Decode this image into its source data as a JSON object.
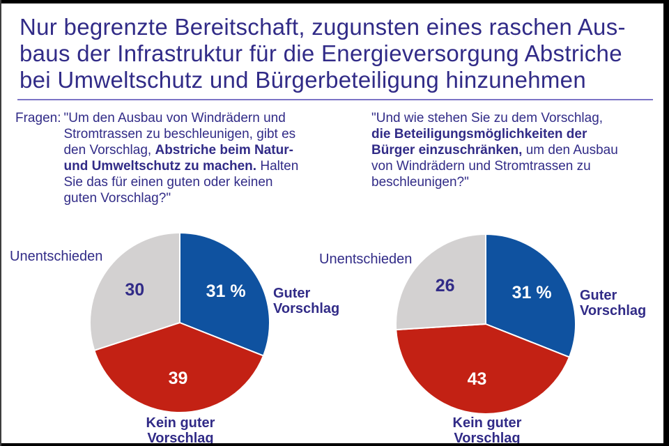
{
  "header": {
    "title": "Nur begrenzte Bereitschaft, zugunsten eines raschen Aus-\nbaus der Infrastruktur für die Energieversorgung Abstriche\nbei Umweltschutz und Bürgerbeteiligung hinzunehmen"
  },
  "questions": {
    "prefix": "Fragen:",
    "left": {
      "segments": [
        {
          "text": "\"Um den Ausbau von Windrädern und\nStromtrassen zu beschleunigen, gibt es\nden Vorschlag, ",
          "bold": false
        },
        {
          "text": "Abstriche beim Natur-\nund Umweltschutz zu machen.",
          "bold": true
        },
        {
          "text": " Halten\nSie das für einen guten oder keinen\nguten Vorschlag?\"",
          "bold": false
        }
      ]
    },
    "right": {
      "segments": [
        {
          "text": "\"Und wie stehen Sie zu dem Vorschlag,\n",
          "bold": false
        },
        {
          "text": "die Beteiligungsmöglichkeiten der\nBürger einzuschränken,",
          "bold": true
        },
        {
          "text": " um den Ausbau\nvon Windrädern und Stromtrassen zu\nbeschleunigen?\"",
          "bold": false
        }
      ]
    }
  },
  "chart_data": [
    {
      "type": "pie",
      "start_angle_deg": 0,
      "direction": "clockwise",
      "unit": "percent",
      "slices": [
        {
          "label": "Guter Vorschlag",
          "value": 31,
          "display": "31 %",
          "color": "#0f52a0",
          "value_color": "#ffffff"
        },
        {
          "label": "Kein guter Vorschlag",
          "value": 39,
          "display": "39",
          "color": "#c32114",
          "value_color": "#ffffff"
        },
        {
          "label": "Unentschieden",
          "value": 30,
          "display": "30",
          "color": "#d3d1d1",
          "value_color": "#312b87"
        }
      ]
    },
    {
      "type": "pie",
      "start_angle_deg": 0,
      "direction": "clockwise",
      "unit": "percent",
      "slices": [
        {
          "label": "Guter Vorschlag",
          "value": 31,
          "display": "31 %",
          "color": "#0f52a0",
          "value_color": "#ffffff"
        },
        {
          "label": "Kein guter Vorschlag",
          "value": 43,
          "display": "43",
          "color": "#c32114",
          "value_color": "#ffffff"
        },
        {
          "label": "Unentschieden",
          "value": 26,
          "display": "26",
          "color": "#d3d1d1",
          "value_color": "#312b87"
        }
      ]
    }
  ],
  "colors": {
    "ink": "#312b87",
    "rule": "#7b73c6",
    "pie_blue": "#0f52a0",
    "pie_red": "#c32114",
    "pie_gray": "#d3d1d1",
    "border": "#000000"
  }
}
